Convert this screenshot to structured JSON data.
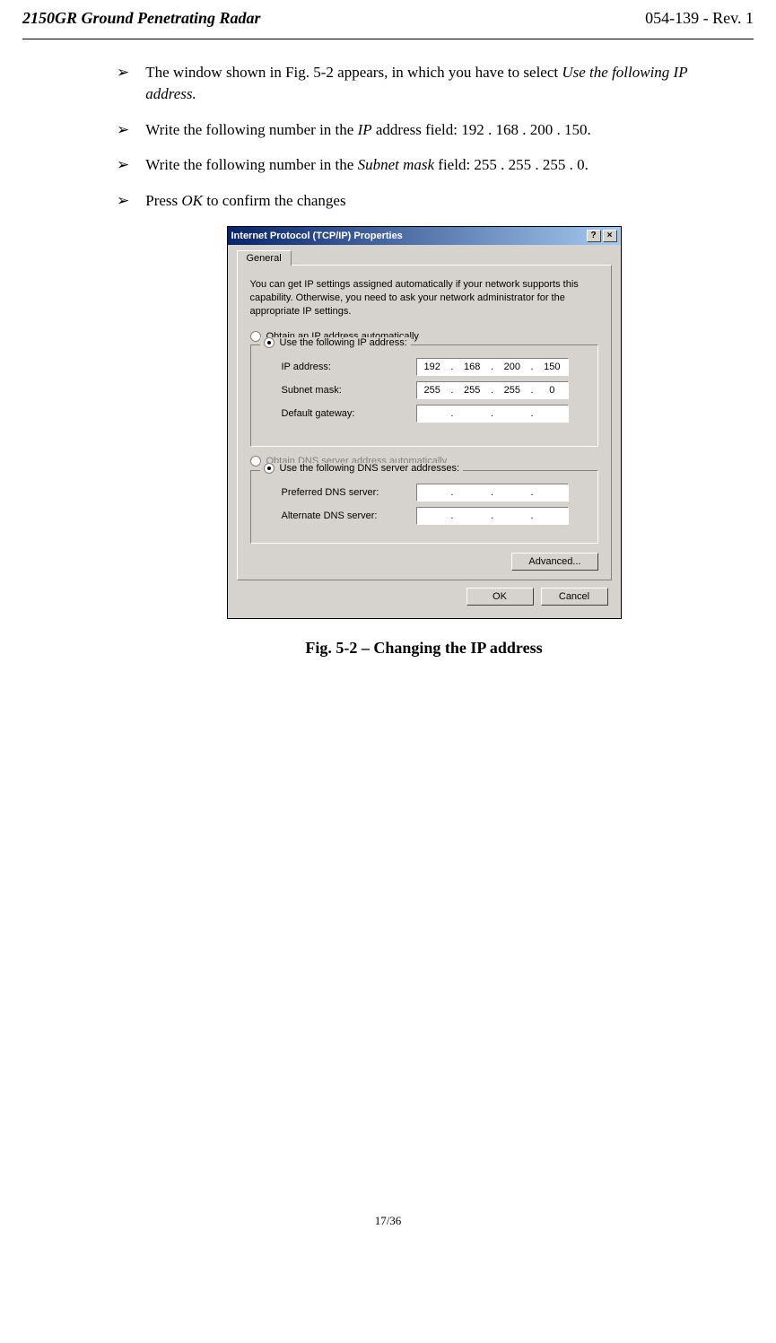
{
  "header": {
    "left": "2150GR Ground Penetrating Radar",
    "right": "054-139 - Rev. 1"
  },
  "bullets": [
    {
      "prefix": "The window shown in Fig. 5-2 appears, in which you have to select ",
      "italic": "Use the following IP address.",
      "suffix": ""
    },
    {
      "prefix": "Write the following number in the ",
      "italic": "IP",
      "suffix": " address field: 192 . 168 . 200 . 150."
    },
    {
      "prefix": "Write the following number in the ",
      "italic": "Subnet mask",
      "suffix": " field: 255 . 255 . 255 . 0."
    },
    {
      "prefix": "Press ",
      "italic": "OK",
      "suffix": " to confirm the changes"
    }
  ],
  "dialog": {
    "title": "Internet Protocol (TCP/IP) Properties",
    "tab": "General",
    "intro": "You can get IP settings assigned automatically if your network supports this capability. Otherwise, you need to ask your network administrator for the appropriate IP settings.",
    "radio_auto_ip": "Obtain an IP address automatically",
    "radio_use_ip": "Use the following IP address:",
    "ip_label": "IP address:",
    "ip": [
      "192",
      "168",
      "200",
      "150"
    ],
    "subnet_label": "Subnet mask:",
    "subnet": [
      "255",
      "255",
      "255",
      "0"
    ],
    "gateway_label": "Default gateway:",
    "radio_auto_dns": "Obtain DNS server address automatically",
    "radio_use_dns": "Use the following DNS server addresses:",
    "pref_dns_label": "Preferred DNS server:",
    "alt_dns_label": "Alternate DNS server:",
    "advanced": "Advanced...",
    "ok": "OK",
    "cancel": "Cancel"
  },
  "caption": "Fig. 5-2 – Changing the IP address",
  "footer": "17/36"
}
